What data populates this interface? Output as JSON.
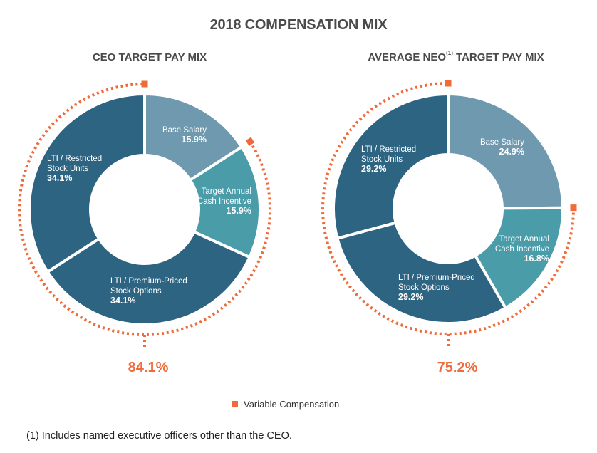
{
  "title": "2018 COMPENSATION MIX",
  "colors": {
    "base_salary": "#6f99ae",
    "cash_incentive": "#4a9ca9",
    "lti_dark": "#2d6482",
    "variable": "#ef6b3a"
  },
  "chart_data": [
    {
      "type": "pie",
      "title": "CEO TARGET PAY MIX",
      "variable_total": "84.1%",
      "slices": [
        {
          "label_lines": [
            "Base Salary"
          ],
          "value": 15.9,
          "display": "15.9%",
          "color_key": "base_salary"
        },
        {
          "label_lines": [
            "Target Annual",
            "Cash Incentive"
          ],
          "value": 15.9,
          "display": "15.9%",
          "color_key": "cash_incentive"
        },
        {
          "label_lines": [
            "LTI / Premium-Priced",
            "Stock Options"
          ],
          "value": 34.1,
          "display": "34.1%",
          "color_key": "lti_dark"
        },
        {
          "label_lines": [
            "LTI / Restricted",
            "Stock Units"
          ],
          "value": 34.1,
          "display": "34.1%",
          "color_key": "lti_dark"
        }
      ]
    },
    {
      "type": "pie",
      "title_main": "AVERAGE NEO",
      "title_sup": "(1)",
      "title_tail": " TARGET PAY MIX",
      "variable_total": "75.2%",
      "slices": [
        {
          "label_lines": [
            "Base Salary"
          ],
          "value": 24.9,
          "display": "24.9%",
          "color_key": "base_salary"
        },
        {
          "label_lines": [
            "Target Annual",
            "Cash Incentive"
          ],
          "value": 16.8,
          "display": "16.8%",
          "color_key": "cash_incentive"
        },
        {
          "label_lines": [
            "LTI / Premium-Priced",
            "Stock Options"
          ],
          "value": 29.2,
          "display": "29.2%",
          "color_key": "lti_dark"
        },
        {
          "label_lines": [
            "LTI / Restricted",
            "Stock Units"
          ],
          "value": 29.2,
          "display": "29.2%",
          "color_key": "lti_dark"
        }
      ]
    }
  ],
  "legend": {
    "label": "Variable Compensation"
  },
  "footnote": "(1) Includes named executive officers other than the CEO."
}
